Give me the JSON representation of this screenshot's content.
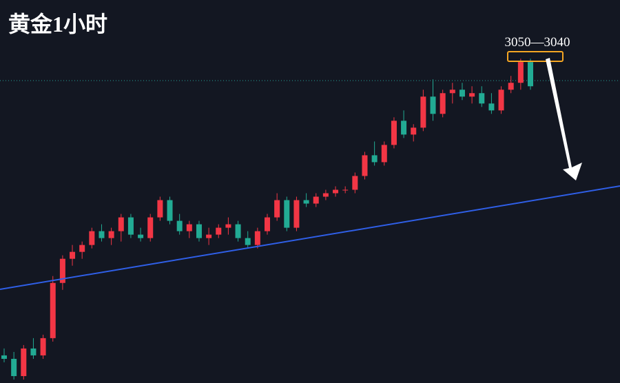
{
  "chart_data": {
    "type": "candlestick",
    "title": "黄金1小时",
    "annotation": "3050—3040",
    "open": [
      2967,
      2966,
      2961,
      2969,
      2967,
      2972,
      2988,
      2995,
      2997,
      2999,
      3003,
      3001,
      3003,
      3007,
      3002,
      3001,
      3007,
      3012,
      3006,
      3003,
      3005,
      3001,
      3002,
      3004,
      3005,
      3001,
      2999,
      3003,
      3007,
      3012,
      3004,
      3012,
      3011,
      3013,
      3014,
      3015,
      3015,
      3019,
      3025,
      3023,
      3028,
      3035,
      3031,
      3033,
      3042,
      3037,
      3043,
      3044,
      3042,
      3043,
      3040,
      3038,
      3044,
      3046,
      3052
    ],
    "high": [
      2969,
      2968,
      2970,
      2972,
      2973,
      2990,
      2996,
      2999,
      3000,
      3004,
      3005,
      3004,
      3008,
      3008,
      3004,
      3008,
      3013,
      3013,
      3008,
      3006,
      3006,
      3004,
      3005,
      3007,
      3006,
      3003,
      3004,
      3008,
      3014,
      3013,
      3013,
      3014,
      3014,
      3015,
      3016,
      3016,
      3020,
      3026,
      3029,
      3029,
      3036,
      3038,
      3034,
      3044,
      3047,
      3044,
      3046,
      3046,
      3045,
      3045,
      3043,
      3045,
      3048,
      3053,
      3053
    ],
    "low": [
      2965,
      2960,
      2960,
      2966,
      2966,
      2971,
      2986,
      2993,
      2995,
      2998,
      3000,
      2999,
      3000,
      3001,
      3000,
      3000,
      3006,
      3005,
      3002,
      3001,
      3000,
      2999,
      3001,
      3002,
      3000,
      2998,
      2998,
      3002,
      3006,
      3003,
      3003,
      3010,
      3010,
      3012,
      3013,
      3014,
      3014,
      3018,
      3022,
      3022,
      3027,
      3030,
      3029,
      3032,
      3035,
      3036,
      3040,
      3041,
      3040,
      3039,
      3037,
      3037,
      3043,
      3044,
      3044
    ],
    "close": [
      2966,
      2961,
      2969,
      2967,
      2972,
      2988,
      2995,
      2997,
      2999,
      3003,
      3001,
      3003,
      3007,
      3002,
      3001,
      3007,
      3012,
      3006,
      3003,
      3005,
      3001,
      3002,
      3004,
      3005,
      3001,
      2999,
      3003,
      3007,
      3012,
      3004,
      3012,
      3011,
      3013,
      3014,
      3015,
      3015,
      3019,
      3025,
      3023,
      3028,
      3035,
      3031,
      3033,
      3042,
      3037,
      3043,
      3044,
      3042,
      3043,
      3040,
      3038,
      3044,
      3046,
      3052,
      3045
    ],
    "up_color": "#f23645",
    "down_color": "#22ab94",
    "ylim": [
      2959,
      3070
    ]
  }
}
